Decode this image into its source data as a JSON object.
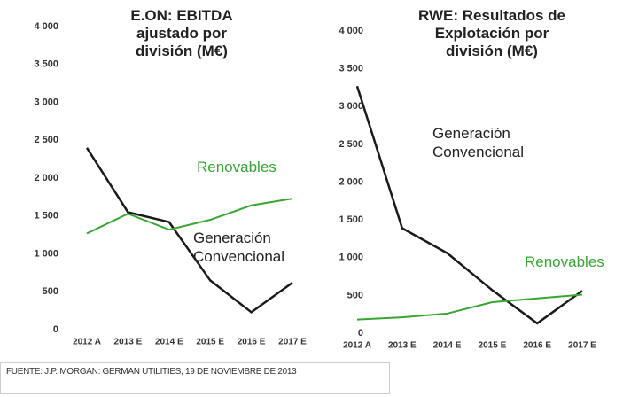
{
  "chart_data": [
    {
      "type": "line",
      "title": "E.ON: EBITDA ajustado por división (M€)",
      "categories": [
        "2012 A",
        "2013 E",
        "2014 E",
        "2015 E",
        "2016 E",
        "2017 E"
      ],
      "series": [
        {
          "name": "Generación Convencional",
          "color": "#1a1a1a",
          "values": [
            2400,
            1550,
            1420,
            650,
            230,
            620
          ]
        },
        {
          "name": "Renovables",
          "color": "#3aa535",
          "values": [
            1270,
            1530,
            1320,
            1450,
            1640,
            1730
          ]
        }
      ],
      "ylim": [
        0,
        4000
      ],
      "yticks": [
        0,
        500,
        {
          "value": 1000,
          "label": "1 000"
        },
        {
          "value": 1500,
          "label": "1 500"
        },
        {
          "value": 2000,
          "label": "2 000"
        },
        {
          "value": 2500,
          "label": "2 500"
        },
        {
          "value": 3000,
          "label": "3 000"
        },
        {
          "value": 3500,
          "label": "3 500"
        },
        {
          "value": 4000,
          "label": "4 000"
        }
      ]
    },
    {
      "type": "line",
      "title": "RWE: Resultados de Explotación por división (M€)",
      "categories": [
        "2012 A",
        "2013 E",
        "2014 E",
        "2015 E",
        "2016 E",
        "2017 E"
      ],
      "series": [
        {
          "name": "Generación Convencional",
          "color": "#1a1a1a",
          "values": [
            3270,
            1390,
            1060,
            570,
            130,
            560
          ]
        },
        {
          "name": "Renovables",
          "color": "#3aa535",
          "values": [
            180,
            210,
            260,
            410,
            460,
            510
          ]
        }
      ],
      "ylim": [
        0,
        4000
      ],
      "yticks": [
        0,
        500,
        {
          "value": 1000,
          "label": "1 000"
        },
        {
          "value": 1500,
          "label": "1 500"
        },
        {
          "value": 2000,
          "label": "2 000"
        },
        {
          "value": 2500,
          "label": "2 500"
        },
        {
          "value": 3000,
          "label": "3 000"
        },
        {
          "value": 3500,
          "label": "3 500"
        },
        {
          "value": 4000,
          "label": "4 000"
        }
      ]
    }
  ],
  "source": "FUENTE: J.P. MORGAN: GERMAN UTILITIES, 19 DE NOVIEMBRE DE 2013"
}
